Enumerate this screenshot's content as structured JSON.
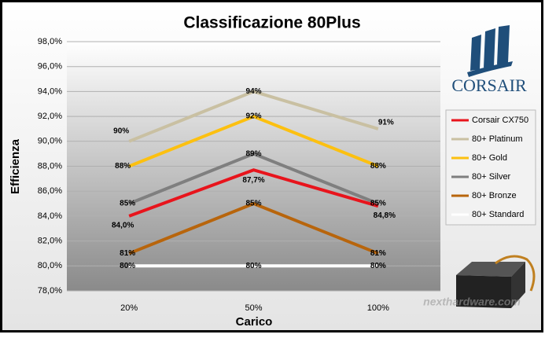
{
  "chart_data": {
    "type": "line",
    "title": "Classificazione 80Plus",
    "x_label": "Carico",
    "y_label": "Efficienza",
    "categories": [
      "20%",
      "50%",
      "100%"
    ],
    "series": [
      {
        "name": "Corsair CX750",
        "color": "#e8141c",
        "values": [
          84.0,
          87.7,
          84.8
        ],
        "value_labels": [
          "84,0%",
          "87,7%",
          "84,8%"
        ]
      },
      {
        "name": "80+ Platinum",
        "color": "#c9c0a2",
        "values": [
          90,
          94,
          91
        ],
        "value_labels": [
          "90%",
          "94%",
          "91%"
        ]
      },
      {
        "name": "80+ Gold",
        "color": "#fcc010",
        "values": [
          88,
          92,
          88
        ],
        "value_labels": [
          "88%",
          "92%",
          "88%"
        ]
      },
      {
        "name": "80+ Silver",
        "color": "#7f7f7f",
        "values": [
          85,
          89,
          85
        ],
        "value_labels": [
          "85%",
          "89%",
          "85%"
        ]
      },
      {
        "name": "80+ Bronze",
        "color": "#b8650c",
        "values": [
          81,
          85,
          81
        ],
        "value_labels": [
          "81%",
          "85%",
          "81%"
        ]
      },
      {
        "name": "80+ Standard",
        "color": "#ffffff",
        "values": [
          80,
          80,
          80
        ],
        "value_labels": [
          "80%",
          "80%",
          "80%"
        ]
      }
    ],
    "ylim": [
      78,
      98
    ],
    "yticks": [
      {
        "value": 78,
        "label": "78,0%"
      },
      {
        "value": 80,
        "label": "80,0%"
      },
      {
        "value": 82,
        "label": "82,0%"
      },
      {
        "value": 84,
        "label": "84,0%"
      },
      {
        "value": 86,
        "label": "86,0%"
      },
      {
        "value": 88,
        "label": "88,0%"
      },
      {
        "value": 90,
        "label": "90,0%"
      },
      {
        "value": 92,
        "label": "92,0%"
      },
      {
        "value": 94,
        "label": "94,0%"
      },
      {
        "value": 96,
        "label": "96,0%"
      },
      {
        "value": 98,
        "label": "98,0%"
      }
    ],
    "grid": true,
    "legend": "right"
  },
  "logo_text": "CORSAIR",
  "watermark": "nexthardware.com"
}
